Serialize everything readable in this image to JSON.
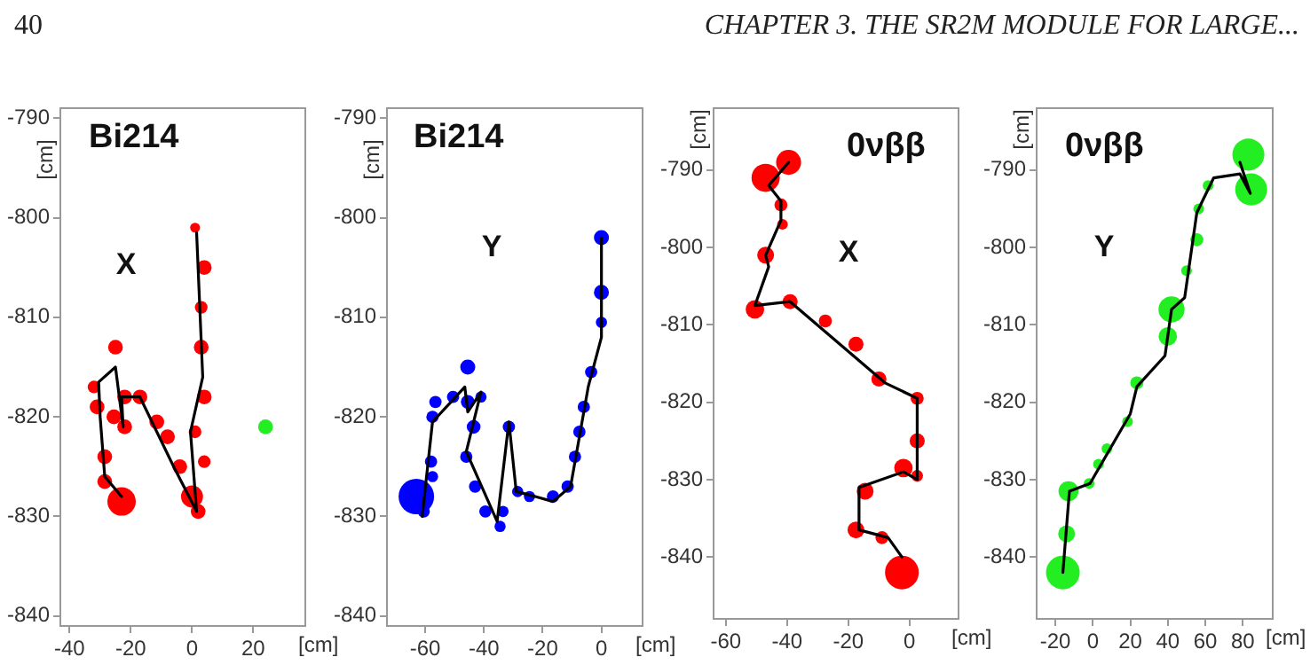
{
  "chart_data": [
    {
      "type": "bubble",
      "title": "Bi214",
      "xlabel": "[cm]",
      "ylabel": "[cm]",
      "annotations": [
        "40",
        "CHAPTER 3. THE SR2M MODULE FOR LARGE...",
        "X"
      ],
      "xlim": [
        -43,
        37
      ],
      "xticks": [
        -40,
        -20,
        0,
        20
      ],
      "ylim": [
        -841,
        -789
      ],
      "yticks": [
        -840,
        -830,
        -820,
        -810,
        -800,
        -790
      ],
      "grid": false,
      "legend": false,
      "marker": "circle",
      "series": [
        {
          "color": "#ff0000",
          "x": [
            1,
            4,
            3,
            3,
            4,
            1,
            4,
            0,
            2,
            -4,
            -8,
            -11.5,
            -17,
            -22,
            -22,
            -25,
            -32,
            -31,
            -25.5,
            -28.5,
            -28.5,
            -23
          ],
          "values": [
            -801,
            -805,
            -809,
            -813,
            -818,
            -821.5,
            -824.5,
            -828,
            -829.5,
            -825,
            -822,
            -820.5,
            -818,
            -818,
            -821,
            -813,
            -817,
            -819,
            -820,
            -824,
            -826.5,
            -828.5
          ],
          "sizes": [
            0.12,
            0.27,
            0.2,
            0.27,
            0.27,
            0.2,
            0.2,
            0.6,
            0.27,
            0.27,
            0.27,
            0.27,
            0.27,
            0.27,
            0.27,
            0.27,
            0.2,
            0.27,
            0.27,
            0.27,
            0.27,
            1
          ]
        },
        {
          "color": "#22ee22",
          "x": [
            24
          ],
          "values": [
            -821
          ],
          "sizes": [
            0.27
          ]
        },
        {
          "type": "line",
          "marker": "none",
          "color": "#000000",
          "x": [
            -23,
            -28.5,
            -30,
            -30.5,
            -25,
            -22.5,
            -23,
            -17,
            -6,
            1.5,
            -0.5,
            3.5,
            1.5
          ],
          "values": [
            -828,
            -826,
            -820,
            -816.5,
            -815,
            -821,
            -818,
            -818,
            -825,
            -829.5,
            -821.5,
            -816,
            -801.5
          ]
        }
      ]
    },
    {
      "type": "bubble",
      "title": "Bi214",
      "xlabel": "[cm]",
      "ylabel": "[cm]",
      "annotations": [
        "Y"
      ],
      "xlim": [
        -73,
        14
      ],
      "xticks": [
        -60,
        -40,
        -20,
        0
      ],
      "ylim": [
        -841,
        -789
      ],
      "yticks": [
        -840,
        -830,
        -820,
        -810,
        -800,
        -790
      ],
      "grid": false,
      "legend": false,
      "marker": "circle",
      "series": [
        {
          "color": "#0000ff",
          "x": [
            0,
            0,
            0,
            -3.5,
            -6,
            -7.5,
            -9,
            -11.5,
            -16.5,
            -24.5,
            -28.5,
            -31.5,
            -33.5,
            -34.5,
            -39.5,
            -43,
            -43.5,
            -41,
            -45.5,
            -45.5,
            -46,
            -50.5,
            -56.5,
            -57.5,
            -58,
            -57.5,
            -60.5,
            -63
          ],
          "values": [
            -802,
            -807.5,
            -810.5,
            -815.5,
            -819,
            -821.5,
            -824,
            -827,
            -828,
            -828,
            -827.5,
            -821,
            -829.5,
            -831,
            -829.5,
            -827,
            -821,
            -818,
            -818.5,
            -815,
            -824,
            -818,
            -818.5,
            -820,
            -824.5,
            -826,
            -829.5,
            -828
          ],
          "sizes": [
            0.18,
            0.18,
            0.1,
            0.12,
            0.12,
            0.12,
            0.12,
            0.12,
            0.12,
            0.1,
            0.1,
            0.12,
            0.1,
            0.1,
            0.12,
            0.12,
            0.15,
            0.1,
            0.15,
            0.18,
            0.12,
            0.12,
            0.12,
            0.12,
            0.12,
            0.1,
            0.12,
            1
          ]
        },
        {
          "type": "line",
          "marker": "none",
          "color": "#000000",
          "x": [
            -61,
            -57.5,
            -46.5,
            -45.5,
            -41,
            -46,
            -35.5,
            -31.5,
            -29,
            -22.5,
            -16.5,
            -10.5,
            -4.5,
            0,
            0
          ],
          "values": [
            -830,
            -820.5,
            -817,
            -819.5,
            -817.5,
            -823.5,
            -830.5,
            -820.5,
            -827.5,
            -828,
            -828.5,
            -827,
            -817,
            -812,
            -802
          ]
        }
      ]
    },
    {
      "type": "bubble",
      "title": "0νββ",
      "xlabel": "[cm]",
      "ylabel": "[cm]",
      "annotations": [
        "X"
      ],
      "xlim": [
        -64,
        16
      ],
      "xticks": [
        -60,
        -40,
        -20,
        0
      ],
      "ylim": [
        -848,
        -782
      ],
      "yticks": [
        -840,
        -830,
        -820,
        -810,
        -800,
        -790
      ],
      "grid": false,
      "legend": false,
      "marker": "circle",
      "series": [
        {
          "color": "#ff0000",
          "x": [
            -39.5,
            -47,
            -42,
            -41.5,
            -47,
            -39,
            -50.5,
            -27.5,
            -17.5,
            -10,
            2.5,
            2.5,
            -2,
            2.5,
            -14.5,
            -17.5,
            -9,
            -2.5
          ],
          "values": [
            -789,
            -791,
            -794.5,
            -797,
            -801,
            -807,
            -808,
            -809.5,
            -812.5,
            -817,
            -819.5,
            -825,
            -828.5,
            -829.5,
            -831.5,
            -836.5,
            -837.5,
            -842
          ],
          "sizes": [
            0.55,
            0.7,
            0.15,
            0.1,
            0.25,
            0.2,
            0.3,
            0.15,
            0.2,
            0.2,
            0.15,
            0.2,
            0.3,
            0.12,
            0.25,
            0.25,
            0.15,
            1
          ]
        },
        {
          "type": "line",
          "marker": "none",
          "color": "#000000",
          "x": [
            -2.5,
            -7,
            -16.5,
            -16.5,
            -2,
            2.5,
            2.5,
            -8,
            -39,
            -50.5,
            -46,
            -47,
            -42,
            -42,
            -46,
            -39.5
          ],
          "values": [
            -840,
            -837.5,
            -836.5,
            -831,
            -829,
            -830,
            -819.5,
            -817.5,
            -807,
            -807.5,
            -802.5,
            -801,
            -796.5,
            -794,
            -792,
            -789
          ]
        }
      ]
    },
    {
      "type": "bubble",
      "title": "0νββ",
      "xlabel": "[cm]",
      "ylabel": "[cm]",
      "annotations": [
        "Y"
      ],
      "xlim": [
        -30,
        96
      ],
      "xticks": [
        -20,
        0,
        20,
        40,
        60,
        80
      ],
      "ylim": [
        -848,
        -782
      ],
      "yticks": [
        -840,
        -830,
        -820,
        -810,
        -800,
        -790
      ],
      "grid": false,
      "legend": false,
      "marker": "circle",
      "series": [
        {
          "color": "#22ee22",
          "x": [
            83,
            84.5,
            61.5,
            56.5,
            55.5,
            50,
            42,
            40,
            23.5,
            18.5,
            7.5,
            3,
            -2,
            -13,
            -14,
            -16
          ],
          "values": [
            -788,
            -792.5,
            -792,
            -795,
            -799,
            -803,
            -808,
            -811.5,
            -817.5,
            -822.5,
            -826,
            -828,
            -830.5,
            -831.5,
            -837,
            -842
          ],
          "sizes": [
            0.9,
            0.9,
            0.1,
            0.1,
            0.15,
            0.1,
            0.6,
            0.3,
            0.15,
            0.1,
            0.1,
            0.1,
            0.1,
            0.35,
            0.25,
            1
          ]
        },
        {
          "type": "line",
          "marker": "none",
          "color": "#000000",
          "x": [
            -16,
            -12.5,
            -1.5,
            20,
            23.5,
            38.5,
            42,
            49,
            55.5,
            64.5,
            78.5,
            84,
            78.5
          ],
          "values": [
            -842,
            -831.5,
            -830.5,
            -821.5,
            -818,
            -814,
            -808,
            -806.5,
            -795.5,
            -791,
            -790.5,
            -793,
            -789
          ]
        }
      ]
    }
  ]
}
